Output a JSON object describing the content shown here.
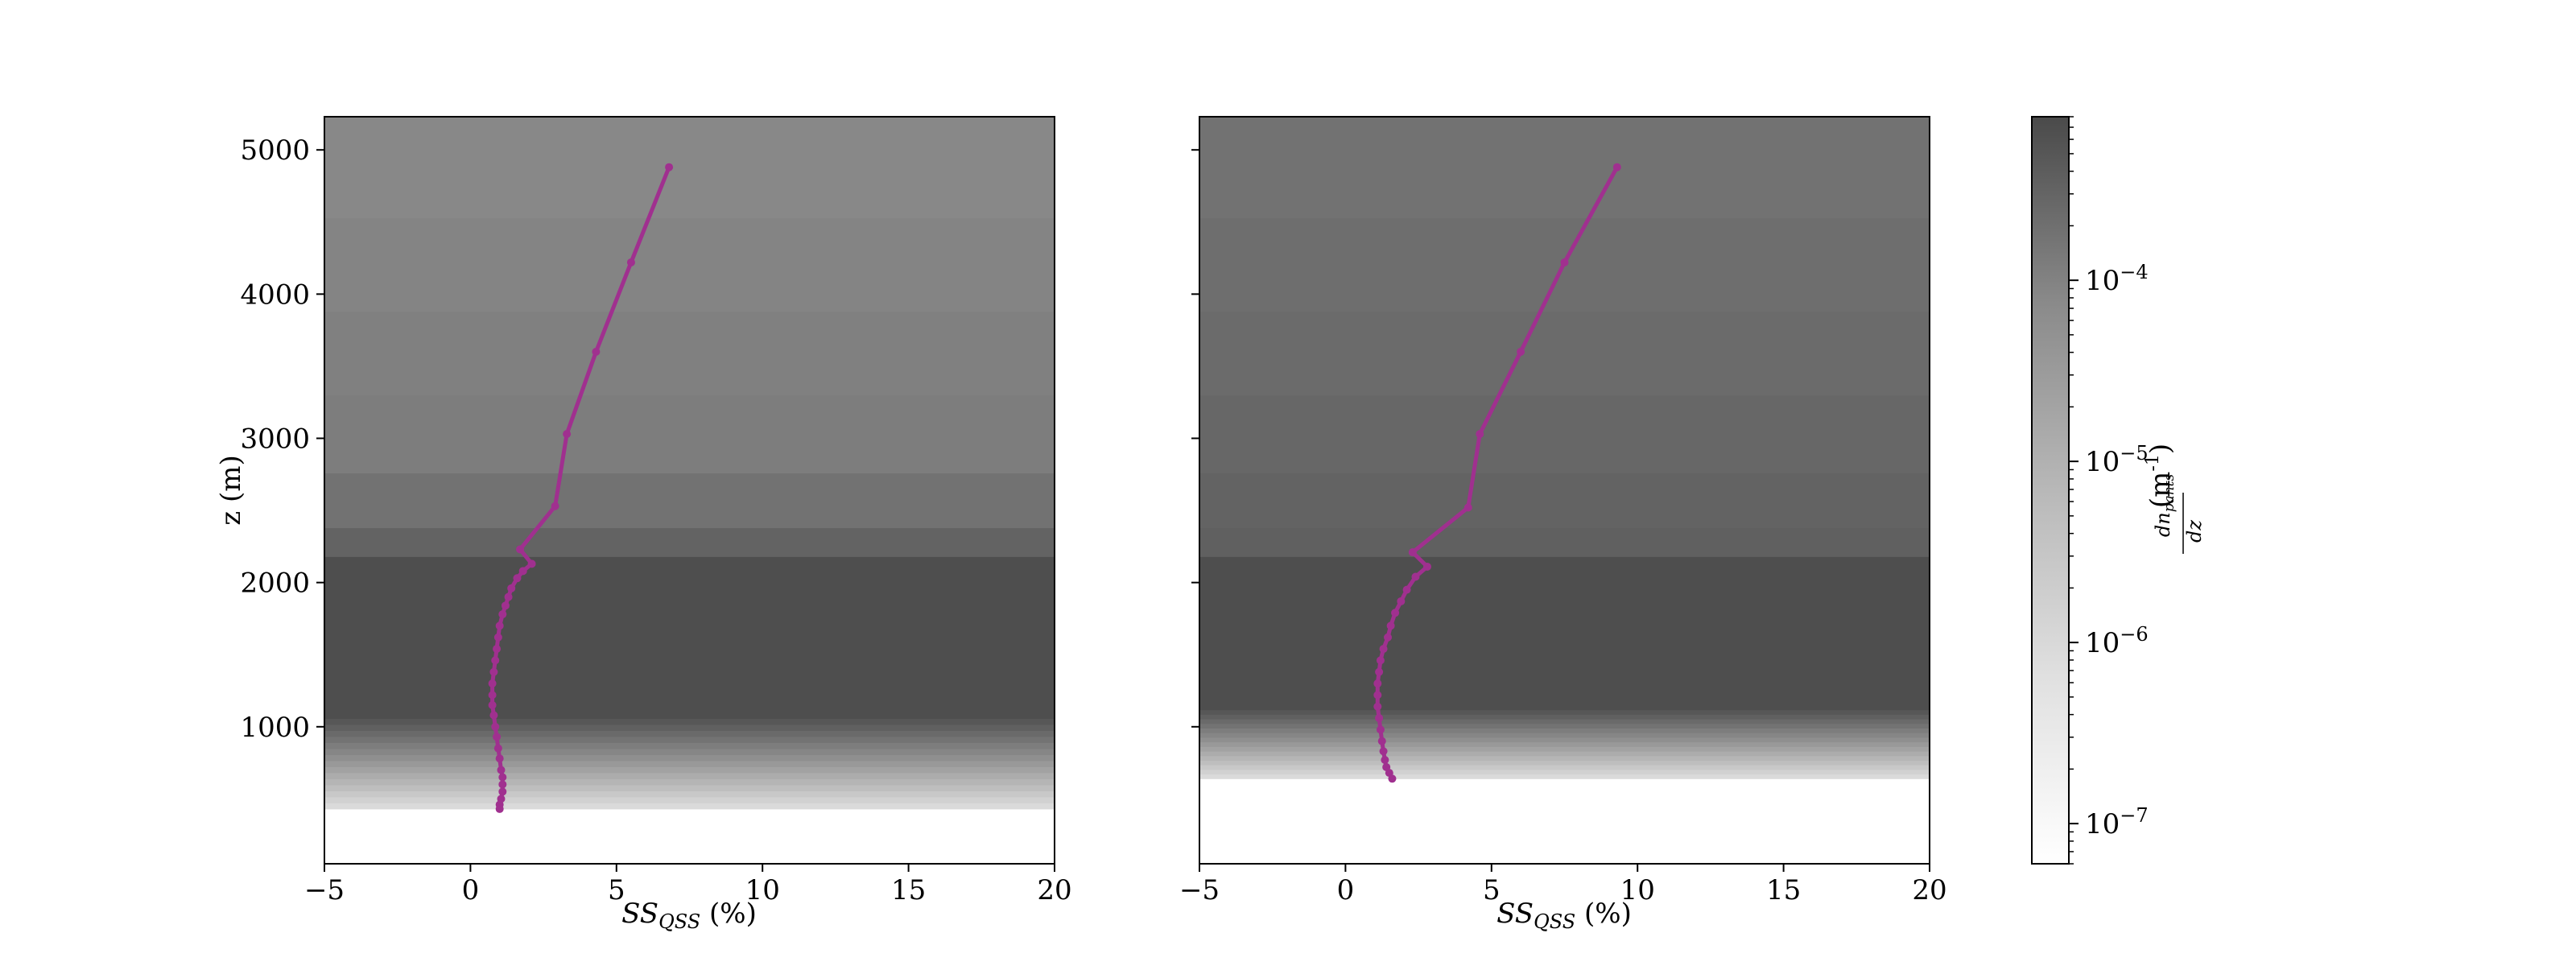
{
  "chart_data": [
    {
      "type": "line",
      "panel": "left",
      "xlabel": "SS_QSS (%)",
      "xlabel_main": "SS",
      "xlabel_sub": "QSS",
      "xlabel_unit": " (%)",
      "ylabel": "z (m)",
      "xlim": [
        -5,
        20
      ],
      "ylim": [
        50,
        5230
      ],
      "xticks": [
        -5,
        0,
        5,
        10,
        15,
        20
      ],
      "yticks": [
        1000,
        2000,
        3000,
        4000,
        5000
      ],
      "ytick_labels_visible": true,
      "series_color": "#a0308f",
      "background_bands": {
        "data_min_z": 430,
        "bands": [
          {
            "z0": 430,
            "z1": 1100,
            "density_level": "gradient-light-to-dark"
          },
          {
            "z0": 1100,
            "z1": 2180,
            "density_level": 0.98
          },
          {
            "z0": 2180,
            "z1": 2380,
            "density_level": 0.86
          },
          {
            "z0": 2380,
            "z1": 2760,
            "density_level": 0.78
          },
          {
            "z0": 2760,
            "z1": 3300,
            "density_level": 0.72
          },
          {
            "z0": 3300,
            "z1": 3880,
            "density_level": 0.7
          },
          {
            "z0": 3880,
            "z1": 4530,
            "density_level": 0.68
          },
          {
            "z0": 4530,
            "z1": 5230,
            "density_level": 0.66
          }
        ]
      },
      "series": [
        {
          "x": [
            1.0,
            1.0,
            1.05,
            1.1,
            1.1,
            1.1,
            1.05,
            1.0,
            0.95,
            0.9,
            0.85,
            0.8,
            0.75,
            0.75,
            0.75,
            0.8,
            0.85,
            0.9,
            0.95,
            1.0,
            1.1,
            1.2,
            1.3,
            1.4,
            1.6,
            1.8,
            2.1,
            1.7,
            2.9,
            3.3,
            4.3,
            5.5,
            6.8
          ],
          "y": [
            430,
            460,
            500,
            550,
            600,
            650,
            700,
            780,
            850,
            930,
            1000,
            1080,
            1150,
            1220,
            1300,
            1380,
            1460,
            1540,
            1620,
            1700,
            1780,
            1840,
            1900,
            1960,
            2030,
            2080,
            2130,
            2230,
            2530,
            3030,
            3600,
            4220,
            4880
          ]
        }
      ]
    },
    {
      "type": "line",
      "panel": "right",
      "xlabel": "SS_QSS (%)",
      "xlabel_main": "SS",
      "xlabel_sub": "QSS",
      "xlabel_unit": " (%)",
      "ylabel": "",
      "xlim": [
        -5,
        20
      ],
      "ylim": [
        50,
        5230
      ],
      "xticks": [
        -5,
        0,
        5,
        10,
        15,
        20
      ],
      "yticks": [
        1000,
        2000,
        3000,
        4000,
        5000
      ],
      "ytick_labels_visible": false,
      "series_color": "#a0308f",
      "background_bands": {
        "data_min_z": 640,
        "bands": [
          {
            "z0": 640,
            "z1": 1150,
            "density_level": "gradient-light-to-dark"
          },
          {
            "z0": 1150,
            "z1": 2180,
            "density_level": 0.98
          },
          {
            "z0": 2180,
            "z1": 2380,
            "density_level": 0.88
          },
          {
            "z0": 2380,
            "z1": 2760,
            "density_level": 0.86
          },
          {
            "z0": 2760,
            "z1": 3300,
            "density_level": 0.84
          },
          {
            "z0": 3300,
            "z1": 3880,
            "density_level": 0.82
          },
          {
            "z0": 3880,
            "z1": 4530,
            "density_level": 0.8
          },
          {
            "z0": 4530,
            "z1": 5230,
            "density_level": 0.78
          }
        ]
      },
      "series": [
        {
          "x": [
            1.6,
            1.5,
            1.4,
            1.35,
            1.3,
            1.25,
            1.2,
            1.15,
            1.1,
            1.1,
            1.1,
            1.15,
            1.2,
            1.3,
            1.45,
            1.55,
            1.7,
            1.9,
            2.1,
            2.4,
            2.8,
            2.3,
            4.2,
            4.6,
            6.0,
            7.5,
            9.3
          ],
          "y": [
            640,
            680,
            720,
            770,
            830,
            900,
            980,
            1060,
            1140,
            1220,
            1300,
            1380,
            1460,
            1540,
            1620,
            1700,
            1790,
            1870,
            1950,
            2040,
            2110,
            2210,
            2520,
            3030,
            3600,
            4220,
            4880
          ]
        }
      ]
    }
  ],
  "colorbar": {
    "label_expr": "dn_pants/dz",
    "label_numerator": "dn",
    "label_numerator_sub": "pants",
    "label_denominator": "dz",
    "label_unit": "(m",
    "label_unit_exp": "-1",
    "label_unit_close": ")",
    "scale": "log",
    "range": [
      6e-08,
      0.0008
    ],
    "ticks": [
      {
        "value": 1e-07,
        "base": "10",
        "exp": "−7"
      },
      {
        "value": 1e-06,
        "base": "10",
        "exp": "−6"
      },
      {
        "value": 1e-05,
        "base": "10",
        "exp": "−5"
      },
      {
        "value": 0.0001,
        "base": "10",
        "exp": "−4"
      }
    ],
    "colormap": "Greys"
  }
}
